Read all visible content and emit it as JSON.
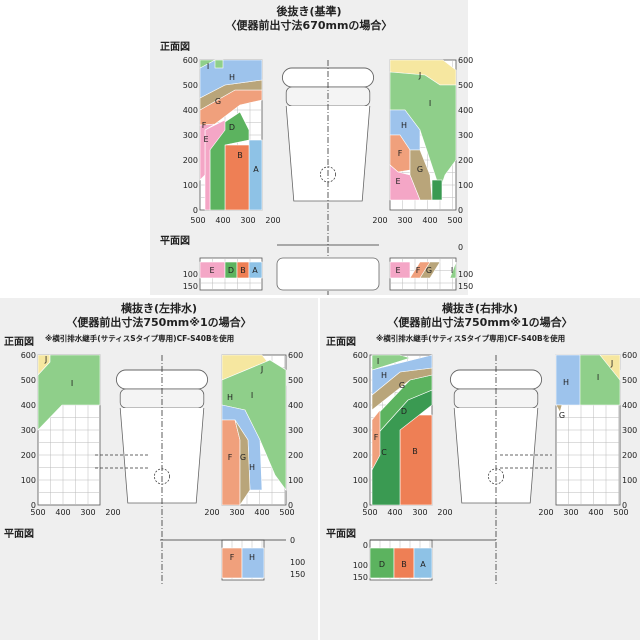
{
  "top": {
    "title_line1": "後抜き(基準)",
    "title_line2": "〈便器前出寸法670mmの場合〉",
    "front_label": "正面図",
    "plan_label": "平面図",
    "yaxis": [
      "600",
      "500",
      "400",
      "300",
      "200",
      "100",
      "0"
    ],
    "xaxis_left": [
      "500",
      "400",
      "300",
      "200"
    ],
    "xaxis_right": [
      "200",
      "300",
      "400",
      "500"
    ],
    "plan_axis": [
      "0",
      "100",
      "150"
    ]
  },
  "left": {
    "title_line1": "横抜き(左排水)",
    "title_line2": "〈便器前出寸法750mm※1の場合〉",
    "front_label": "正面図",
    "note": "※横引排水継手(サティスSタイプ専用)CF-S40Bを使用",
    "plan_label": "平面図",
    "yaxis": [
      "600",
      "500",
      "400",
      "300",
      "200",
      "100",
      "0"
    ],
    "xaxis_left": [
      "500",
      "400",
      "300",
      "200"
    ],
    "xaxis_right": [
      "200",
      "300",
      "400",
      "500"
    ],
    "plan_axis": [
      "0",
      "100",
      "150"
    ]
  },
  "right": {
    "title_line1": "横抜き(右排水)",
    "title_line2": "〈便器前出寸法750mm※1の場合〉",
    "front_label": "正面図",
    "note": "※横引排水継手(サティスSタイプ専用)CF-S40Bを使用",
    "plan_label": "平面図",
    "yaxis": [
      "600",
      "500",
      "400",
      "300",
      "200",
      "100",
      "0"
    ],
    "xaxis_left": [
      "500",
      "400",
      "300",
      "200"
    ],
    "xaxis_right": [
      "200",
      "300",
      "400",
      "500"
    ],
    "plan_axis": [
      "0",
      "100",
      "150"
    ]
  },
  "zones": {
    "A": "A",
    "B": "B",
    "C": "C",
    "D": "D",
    "E": "E",
    "F": "F",
    "G": "G",
    "H": "H",
    "I": "I",
    "J": "J"
  },
  "colors": {
    "A": "#8ec2e6",
    "B": "#ee7f55",
    "C": "#3a9a52",
    "D": "#5cb35f",
    "E": "#f4a6c6",
    "F": "#f0a07c",
    "G": "#b9a57a",
    "H": "#9dc3ec",
    "I": "#8fcf8a",
    "J": "#f6e7a0"
  }
}
